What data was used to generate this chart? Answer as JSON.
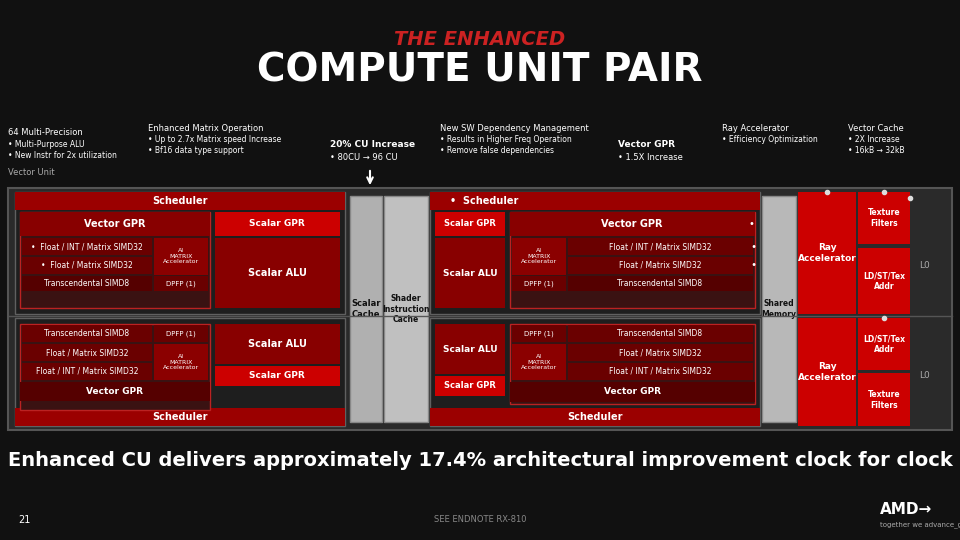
{
  "title_line1": "THE ENHANCED",
  "title_line2": "COMPUTE UNIT PAIR",
  "bg_color": "#111111",
  "red_header": "#9b0000",
  "red_bright": "#cc0000",
  "red_row": "#6a0000",
  "red_row2": "#550000",
  "red_ai": "#8b0000",
  "red_dpfp": "#6a0000",
  "gray_outer": "#2e2e2e",
  "gray_cu": "#222222",
  "gray_cache": "#b8b8b8",
  "gray_shared": "#b8b8b8",
  "white": "#ffffff",
  "bottom_text": "Enhanced CU delivers approximately 17.4% architectural improvement clock for clock",
  "footnote_left": "21",
  "footnote_center": "SEE ENDNOTE RX-810"
}
